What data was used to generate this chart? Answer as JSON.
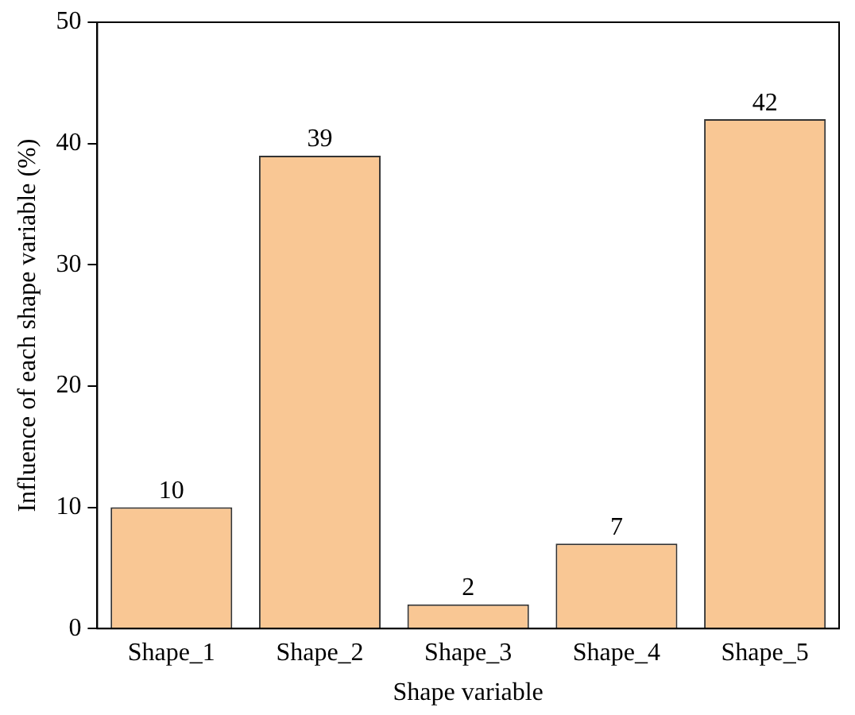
{
  "chart_data": {
    "type": "bar",
    "xlabel": "Shape variable",
    "ylabel": "Influence of each shape variable (%)",
    "categories": [
      "Shape_1",
      "Shape_2",
      "Shape_3",
      "Shape_4",
      "Shape_5"
    ],
    "values": [
      10,
      39,
      2,
      7,
      42
    ],
    "color": "#f9c794",
    "ylim": [
      0,
      50
    ],
    "yticks": [
      0,
      10,
      20,
      30,
      40,
      50
    ],
    "grid": false,
    "legend": false,
    "data_labels": true
  }
}
